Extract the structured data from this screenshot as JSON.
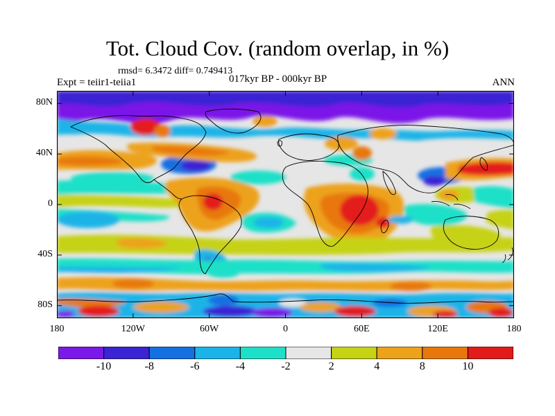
{
  "title": "Tot. Cloud Cov. (random overlap, in %)",
  "stats": "rmsd= 6.3472 diff= 0.749413",
  "experiment": "Expt = teiir1-teiia1",
  "period": "017kyr BP - 000kyr BP",
  "season": "ANN",
  "lat_ticks": [
    {
      "label": "80N",
      "value": 80
    },
    {
      "label": "40N",
      "value": 40
    },
    {
      "label": "0",
      "value": 0
    },
    {
      "label": "40S",
      "value": -40
    },
    {
      "label": "80S",
      "value": -80
    }
  ],
  "lon_ticks": [
    {
      "label": "180",
      "value": -180
    },
    {
      "label": "120W",
      "value": -120
    },
    {
      "label": "60W",
      "value": -60
    },
    {
      "label": "0",
      "value": 0
    },
    {
      "label": "60E",
      "value": 60
    },
    {
      "label": "120E",
      "value": 120
    },
    {
      "label": "180",
      "value": 180
    }
  ],
  "colorbar": {
    "labels": [
      "-10",
      "-8",
      "-6",
      "-4",
      "-2",
      "2",
      "4",
      "8",
      "10"
    ],
    "colors": [
      "#7b19e8",
      "#3b24d4",
      "#1570e2",
      "#1ab4e8",
      "#1ee0c8",
      "#e6e6e6",
      "#c6d214",
      "#eda21c",
      "#e8780c",
      "#e31a1a"
    ]
  },
  "chart_data": {
    "type": "heatmap",
    "variable": "Tot. Cloud Cov. (random overlap, in %)",
    "xlim": [
      -180,
      180
    ],
    "ylim": [
      -90,
      90
    ],
    "levels": [
      -10,
      -8,
      -6,
      -4,
      -2,
      2,
      4,
      8,
      10
    ],
    "features": [
      {
        "lon": -100,
        "lat": 68,
        "value": -12
      },
      {
        "lon": -135,
        "lat": 62,
        "value": 10
      },
      {
        "lon": 30,
        "lat": 72,
        "value": -11
      },
      {
        "lon": 110,
        "lat": 75,
        "value": -10
      },
      {
        "lon": -160,
        "lat": 78,
        "value": -9
      },
      {
        "lon": -165,
        "lat": 32,
        "value": 9
      },
      {
        "lon": -60,
        "lat": 48,
        "value": 7
      },
      {
        "lon": 150,
        "lat": 28,
        "value": 11
      },
      {
        "lon": -50,
        "lat": 15,
        "value": 6
      },
      {
        "lon": -55,
        "lat": -5,
        "value": 8
      },
      {
        "lon": 40,
        "lat": -8,
        "value": 10
      },
      {
        "lon": 25,
        "lat": 5,
        "value": 6
      },
      {
        "lon": 130,
        "lat": -18,
        "value": 5
      },
      {
        "lon": -140,
        "lat": 0,
        "value": 3
      },
      {
        "lon": -170,
        "lat": 10,
        "value": -4
      },
      {
        "lon": -20,
        "lat": -12,
        "value": -5
      },
      {
        "lon": 88,
        "lat": 12,
        "value": -3
      },
      {
        "lon": -78,
        "lat": -52,
        "value": -8
      },
      {
        "lon": 0,
        "lat": -62,
        "value": -3
      },
      {
        "lon": -165,
        "lat": -78,
        "value": 8
      },
      {
        "lon": -50,
        "lat": -80,
        "value": -6
      },
      {
        "lon": 60,
        "lat": -82,
        "value": 9
      },
      {
        "lon": 140,
        "lat": -82,
        "value": 8
      }
    ]
  }
}
